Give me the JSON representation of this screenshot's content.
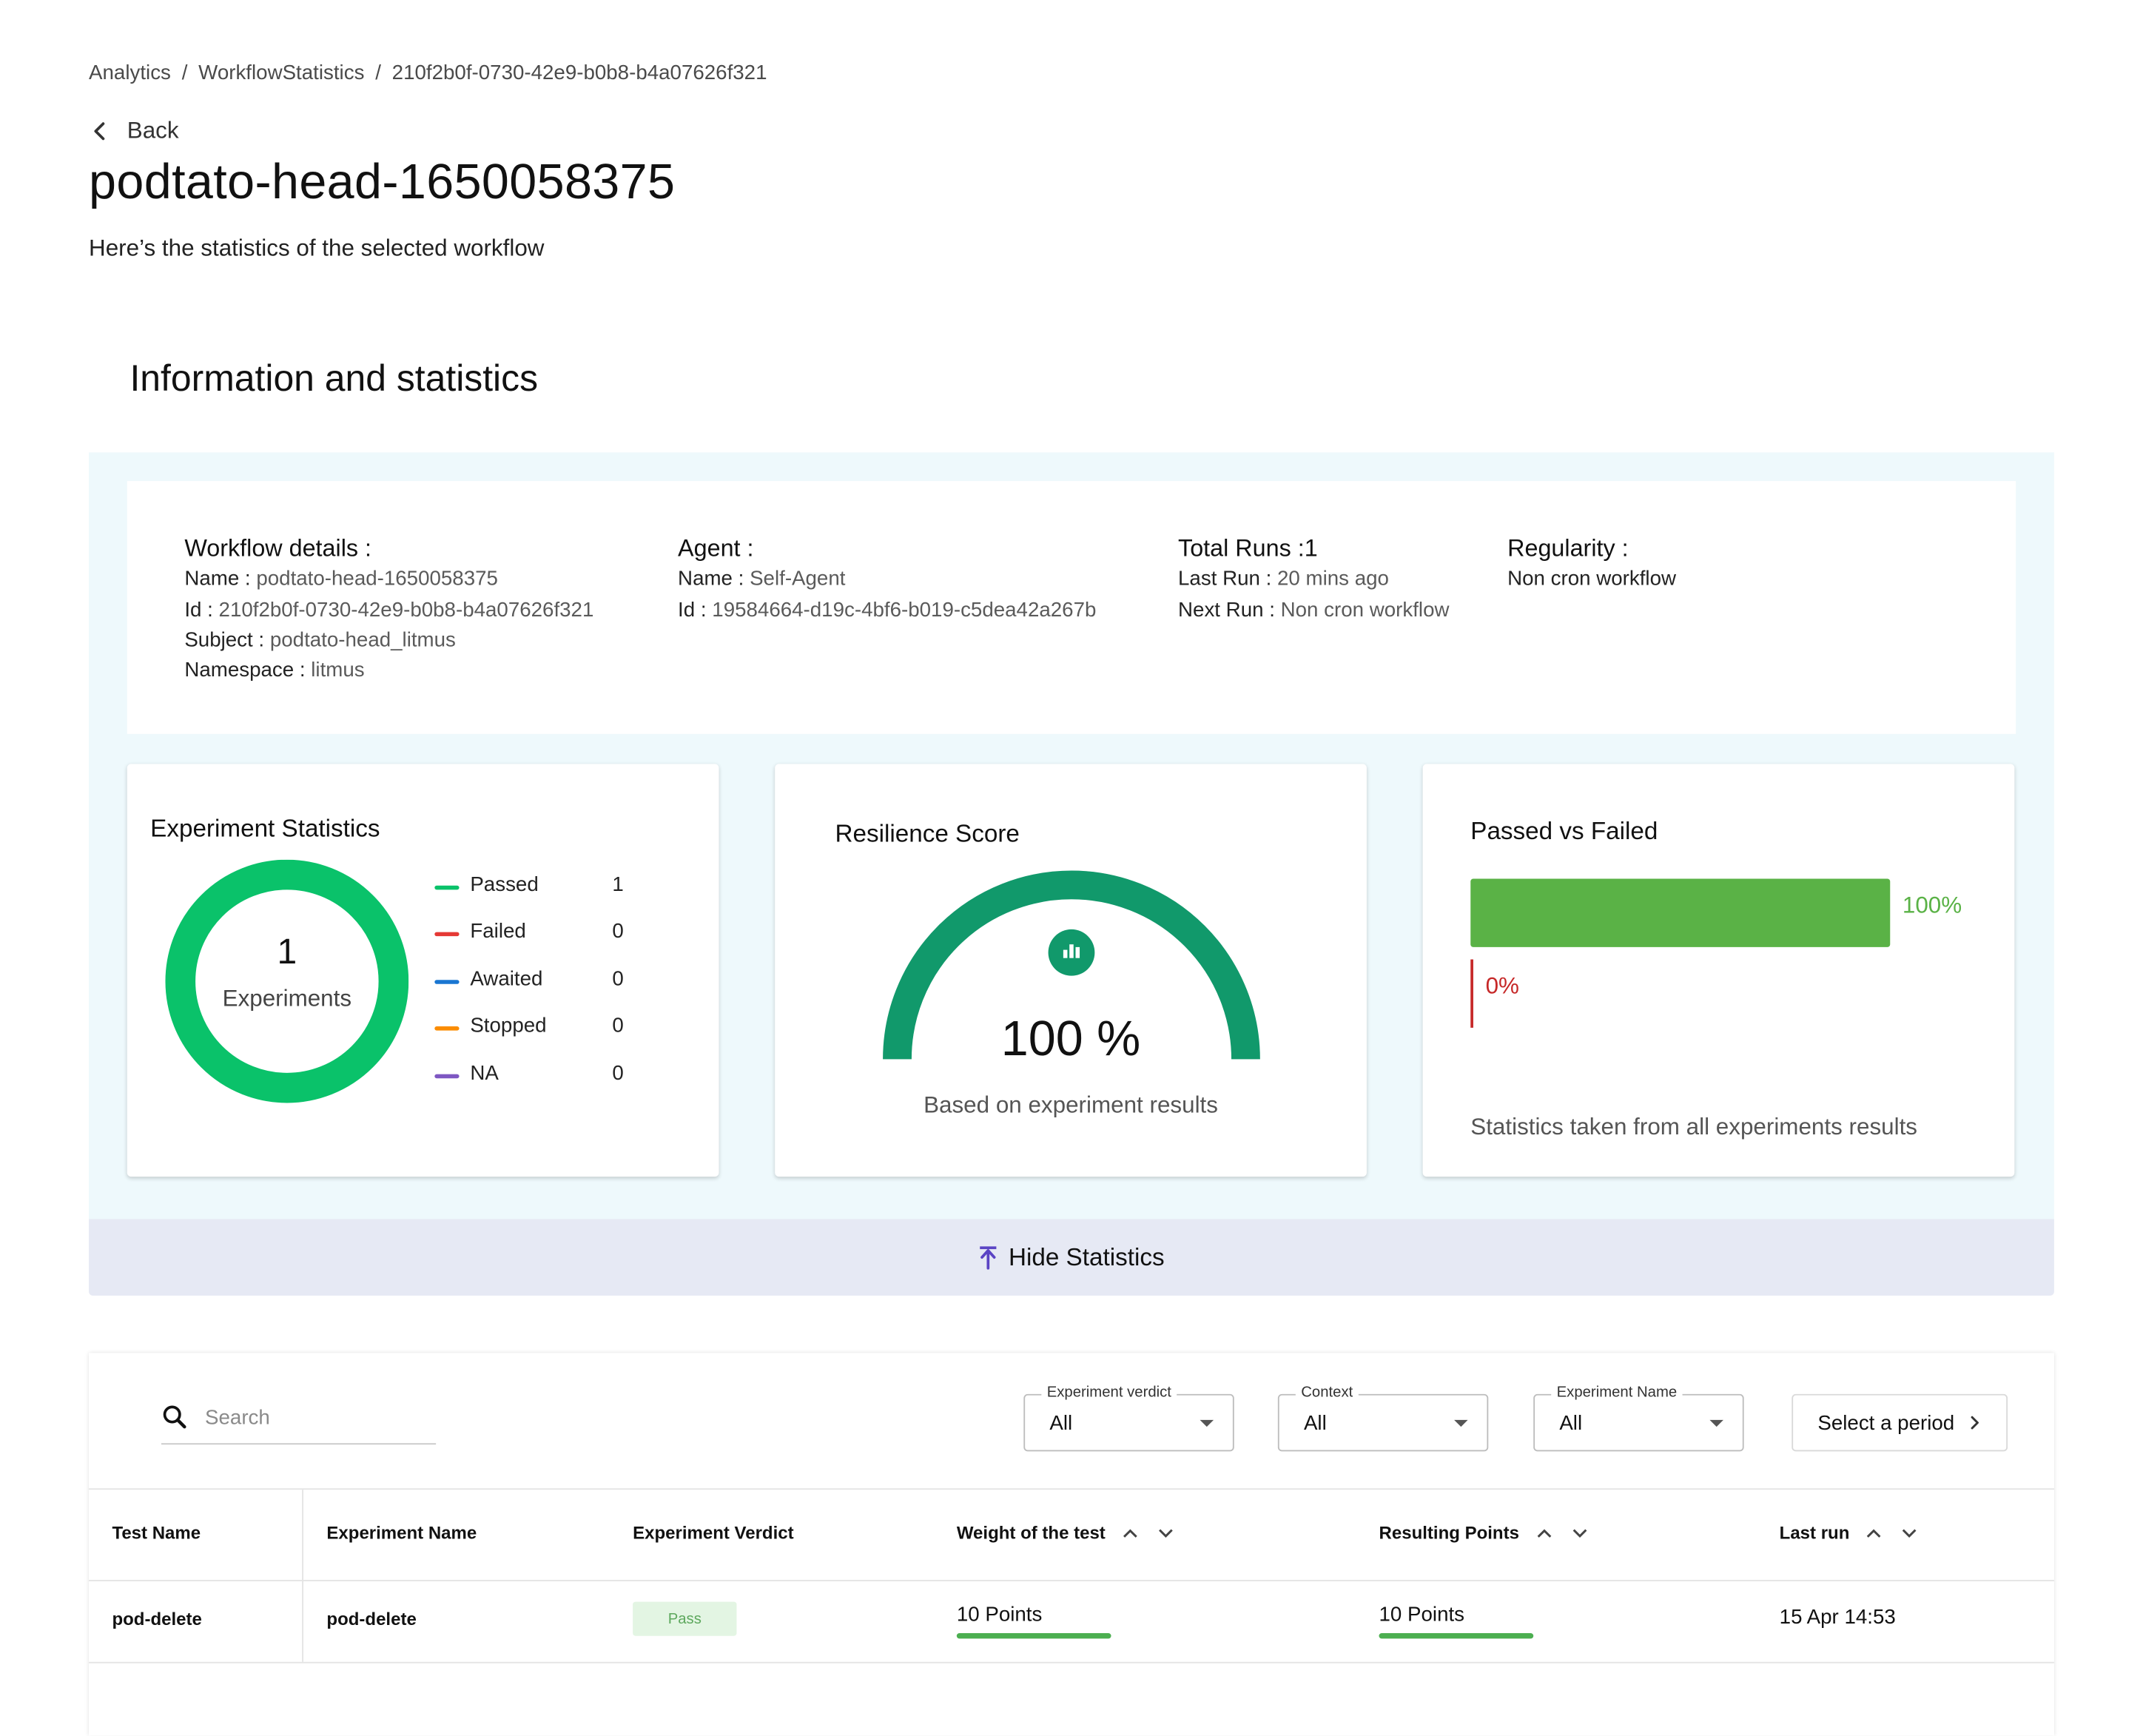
{
  "breadcrumb": [
    "Analytics",
    "WorkflowStatistics",
    "210f2b0f-0730-42e9-b0b8-b4a07626f321"
  ],
  "back_label": "Back",
  "page_title": "podtato-head-1650058375",
  "page_subtitle": "Here’s the statistics of the selected workflow",
  "section_title": "Information and statistics",
  "workflow_details": {
    "heading": "Workflow details :",
    "name_label": "Name :",
    "name": "podtato-head-1650058375",
    "id_label": "Id :",
    "id": "210f2b0f-0730-42e9-b0b8-b4a07626f321",
    "subject_label": "Subject :",
    "subject": "podtato-head_litmus",
    "namespace_label": "Namespace :",
    "namespace": "litmus"
  },
  "agent": {
    "heading": "Agent :",
    "name_label": "Name :",
    "name": "Self-Agent",
    "id_label": "Id :",
    "id": "19584664-d19c-4bf6-b019-c5dea42a267b"
  },
  "runs": {
    "heading": "Total Runs :1",
    "last_run_label": "Last Run :",
    "last_run": "20 mins ago",
    "next_run_label": "Next Run :",
    "next_run": "Non cron workflow"
  },
  "regularity": {
    "heading": "Regularity :",
    "value": "Non cron workflow"
  },
  "experiment_stats": {
    "title": "Experiment Statistics",
    "total": "1",
    "total_label": "Experiments",
    "legend": [
      {
        "label": "Passed",
        "count": "1",
        "color": "#0ac26a"
      },
      {
        "label": "Failed",
        "count": "0",
        "color": "#e53935"
      },
      {
        "label": "Awaited",
        "count": "0",
        "color": "#1976d2"
      },
      {
        "label": "Stopped",
        "count": "0",
        "color": "#fb8c00"
      },
      {
        "label": "NA",
        "count": "0",
        "color": "#7e57c2"
      }
    ]
  },
  "resilience": {
    "title": "Resilience Score",
    "score": "100 %",
    "score_value": 100,
    "caption": "Based on experiment results",
    "color": "#11996b"
  },
  "passed_failed": {
    "title": "Passed vs Failed",
    "passed_pct": 100,
    "passed_label": "100%",
    "failed_label": "0%",
    "caption": "Statistics taken from all experiments results",
    "passed_color": "#5ab246",
    "failed_color": "#c62828"
  },
  "hide_statistics_label": "Hide Statistics",
  "filters": {
    "search_placeholder": "Search",
    "verdict": {
      "label": "Experiment verdict",
      "value": "All"
    },
    "context": {
      "label": "Context",
      "value": "All"
    },
    "experiment_name": {
      "label": "Experiment Name",
      "value": "All"
    },
    "period_label": "Select a period"
  },
  "table": {
    "headers": [
      "Test Name",
      "Experiment Name",
      "Experiment Verdict",
      "Weight of the test",
      "Resulting Points",
      "Last run"
    ],
    "rows": [
      {
        "test_name": "pod-delete",
        "experiment_name": "pod-delete",
        "verdict": "Pass",
        "weight": "10 Points",
        "points": "10 Points",
        "last_run": "15 Apr 14:53"
      }
    ]
  }
}
